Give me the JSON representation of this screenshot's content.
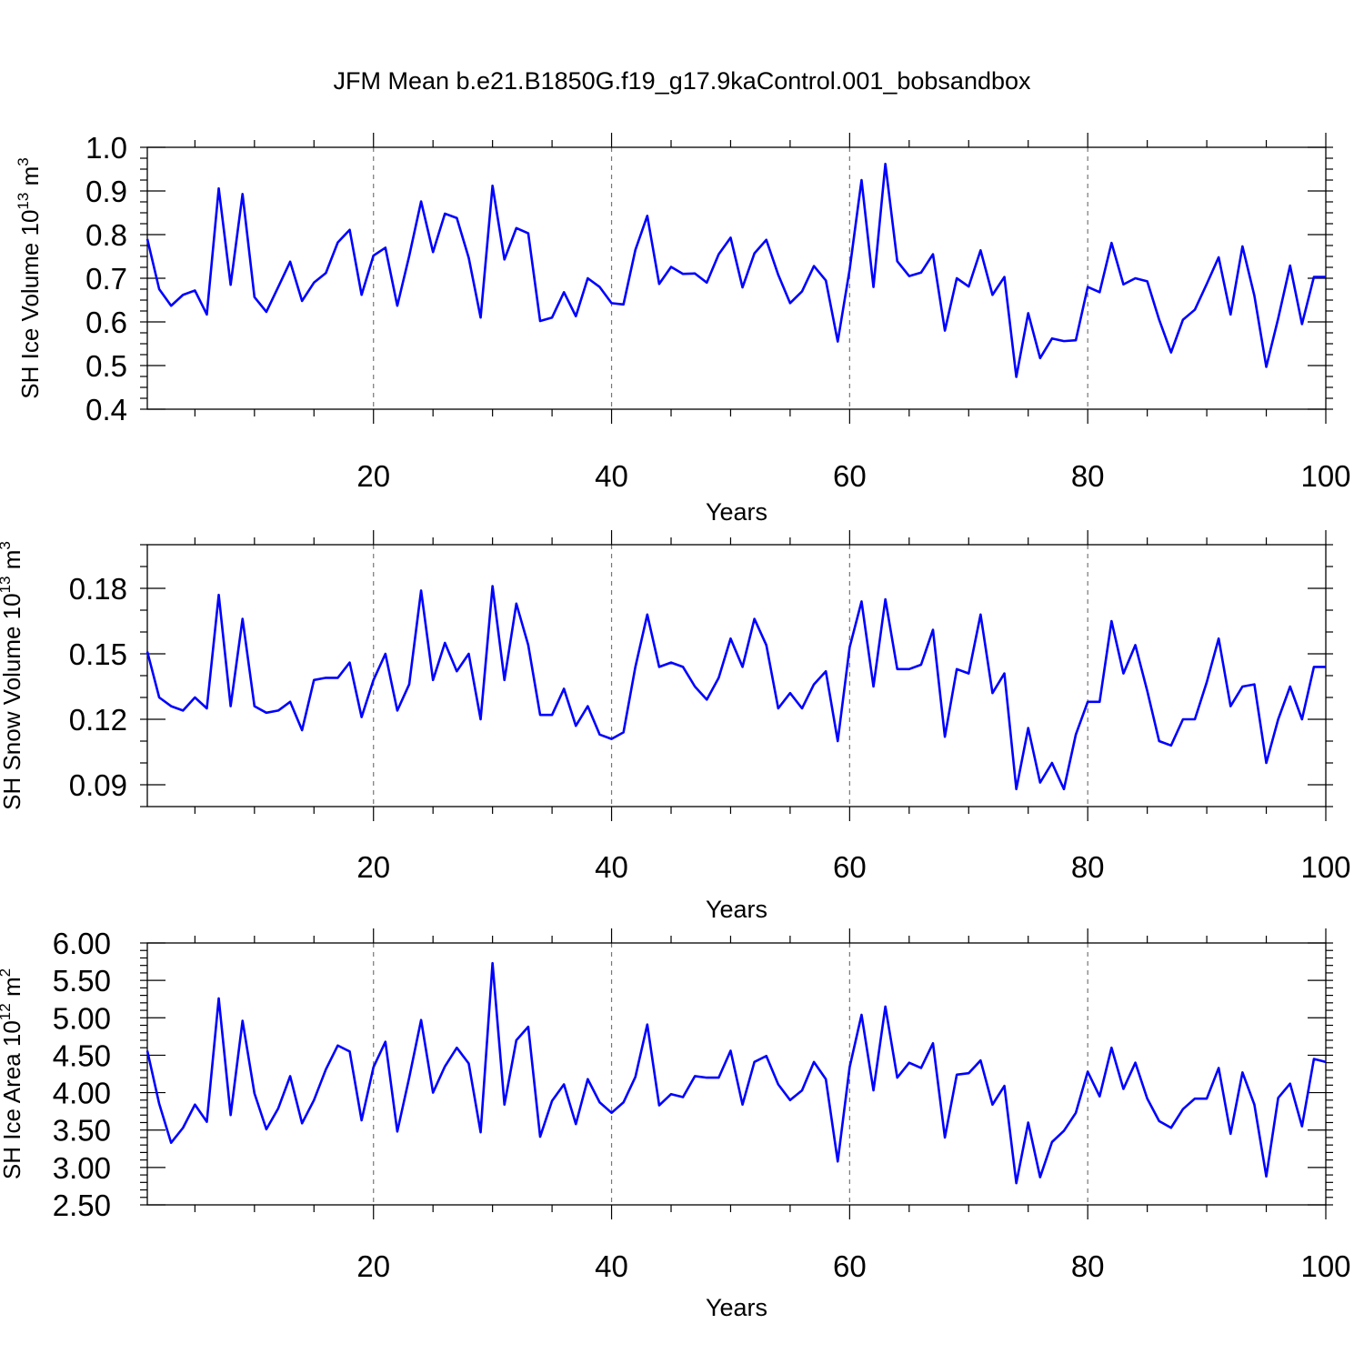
{
  "title": "JFM Mean b.e21.B1850G.f19_g17.9kaControl.001_bobsandbox",
  "chart_data": [
    {
      "type": "line",
      "ylabel": "SH Ice Volume 10",
      "ylabel_sup": "13",
      "ylabel_unit": " m",
      "ylabel_unit_sup": "3",
      "xlabel": "Years",
      "xlim": [
        1,
        100
      ],
      "ylim": [
        0.4,
        1.0
      ],
      "x_ticks": [
        "20",
        "40",
        "60",
        "80",
        "100"
      ],
      "y_ticks": [
        "0.4",
        "0.5",
        "0.6",
        "0.7",
        "0.8",
        "0.9",
        "1.0"
      ],
      "grid": "vertical dashed at x ticks",
      "series": [
        {
          "color": "#0000ff",
          "values": [
            0.79,
            0.675,
            0.637,
            0.662,
            0.672,
            0.617,
            0.906,
            0.685,
            0.893,
            0.657,
            0.623,
            0.68,
            0.738,
            0.648,
            0.69,
            0.712,
            0.782,
            0.811,
            0.662,
            0.752,
            0.77,
            0.637,
            0.751,
            0.876,
            0.76,
            0.848,
            0.838,
            0.747,
            0.61,
            0.912,
            0.743,
            0.815,
            0.803,
            0.602,
            0.61,
            0.668,
            0.613,
            0.7,
            0.68,
            0.643,
            0.64,
            0.765,
            0.843,
            0.687,
            0.726,
            0.71,
            0.711,
            0.69,
            0.755,
            0.793,
            0.679,
            0.757,
            0.788,
            0.708,
            0.643,
            0.67,
            0.728,
            0.695,
            0.555,
            0.72,
            0.925,
            0.68,
            0.962,
            0.739,
            0.705,
            0.713,
            0.755,
            0.58,
            0.7,
            0.681,
            0.764,
            0.662,
            0.703,
            0.474,
            0.62,
            0.517,
            0.562,
            0.556,
            0.558,
            0.68,
            0.668,
            0.781,
            0.686,
            0.7,
            0.693,
            0.605,
            0.53,
            0.605,
            0.628,
            0.687,
            0.748,
            0.617,
            0.773,
            0.66,
            0.497,
            0.608,
            0.729,
            0.595,
            0.703,
            0.703
          ]
        }
      ]
    },
    {
      "type": "line",
      "ylabel": "SH Snow Volume 10",
      "ylabel_sup": "13",
      "ylabel_unit": " m",
      "ylabel_unit_sup": "3",
      "xlabel": "Years",
      "xlim": [
        1,
        100
      ],
      "ylim": [
        0.08,
        0.2
      ],
      "x_ticks": [
        "20",
        "40",
        "60",
        "80",
        "100"
      ],
      "y_ticks": [
        "0.09",
        "0.12",
        "0.15",
        "0.18"
      ],
      "grid": "vertical dashed at x ticks",
      "series": [
        {
          "color": "#0000ff",
          "values": [
            0.151,
            0.13,
            0.126,
            0.124,
            0.13,
            0.125,
            0.177,
            0.126,
            0.166,
            0.126,
            0.123,
            0.124,
            0.128,
            0.115,
            0.138,
            0.139,
            0.139,
            0.146,
            0.121,
            0.138,
            0.15,
            0.124,
            0.136,
            0.179,
            0.138,
            0.155,
            0.142,
            0.15,
            0.12,
            0.181,
            0.138,
            0.173,
            0.154,
            0.122,
            0.122,
            0.134,
            0.117,
            0.126,
            0.113,
            0.111,
            0.114,
            0.144,
            0.168,
            0.144,
            0.146,
            0.144,
            0.135,
            0.129,
            0.139,
            0.157,
            0.144,
            0.166,
            0.154,
            0.125,
            0.132,
            0.125,
            0.136,
            0.142,
            0.11,
            0.153,
            0.174,
            0.135,
            0.175,
            0.143,
            0.143,
            0.145,
            0.161,
            0.112,
            0.143,
            0.141,
            0.168,
            0.132,
            0.141,
            0.088,
            0.116,
            0.091,
            0.1,
            0.088,
            0.113,
            0.128,
            0.128,
            0.165,
            0.141,
            0.154,
            0.133,
            0.11,
            0.108,
            0.12,
            0.12,
            0.137,
            0.157,
            0.126,
            0.135,
            0.136,
            0.1,
            0.12,
            0.135,
            0.12,
            0.144,
            0.144
          ]
        }
      ]
    },
    {
      "type": "line",
      "ylabel": "SH Ice Area 10",
      "ylabel_sup": "12",
      "ylabel_unit": " m",
      "ylabel_unit_sup": "2",
      "xlabel": "Years",
      "xlim": [
        1,
        100
      ],
      "ylim": [
        2.5,
        6.0
      ],
      "x_ticks": [
        "20",
        "40",
        "60",
        "80",
        "100"
      ],
      "y_ticks": [
        "2.50",
        "3.00",
        "3.50",
        "4.00",
        "4.50",
        "5.00",
        "5.50",
        "6.00"
      ],
      "grid": "vertical dashed at x ticks",
      "series": [
        {
          "color": "#0000ff",
          "values": [
            4.56,
            3.85,
            3.33,
            3.53,
            3.84,
            3.61,
            5.26,
            3.7,
            4.96,
            3.99,
            3.51,
            3.79,
            4.22,
            3.59,
            3.9,
            4.31,
            4.63,
            4.55,
            3.63,
            4.34,
            4.68,
            3.48,
            4.2,
            4.97,
            4.0,
            4.35,
            4.6,
            4.39,
            3.47,
            5.73,
            3.84,
            4.7,
            4.88,
            3.41,
            3.89,
            4.11,
            3.58,
            4.18,
            3.87,
            3.73,
            3.87,
            4.21,
            4.91,
            3.83,
            3.98,
            3.94,
            4.22,
            4.2,
            4.2,
            4.56,
            3.84,
            4.41,
            4.49,
            4.11,
            3.9,
            4.03,
            4.41,
            4.18,
            3.08,
            4.34,
            5.04,
            4.03,
            5.15,
            4.2,
            4.4,
            4.33,
            4.66,
            3.4,
            4.24,
            4.26,
            4.43,
            3.84,
            4.09,
            2.79,
            3.6,
            2.87,
            3.34,
            3.49,
            3.73,
            4.28,
            3.95,
            4.6,
            4.05,
            4.4,
            3.92,
            3.62,
            3.53,
            3.78,
            3.92,
            3.92,
            4.33,
            3.45,
            4.27,
            3.84,
            2.88,
            3.93,
            4.12,
            3.55,
            4.45,
            4.41
          ]
        }
      ]
    }
  ]
}
